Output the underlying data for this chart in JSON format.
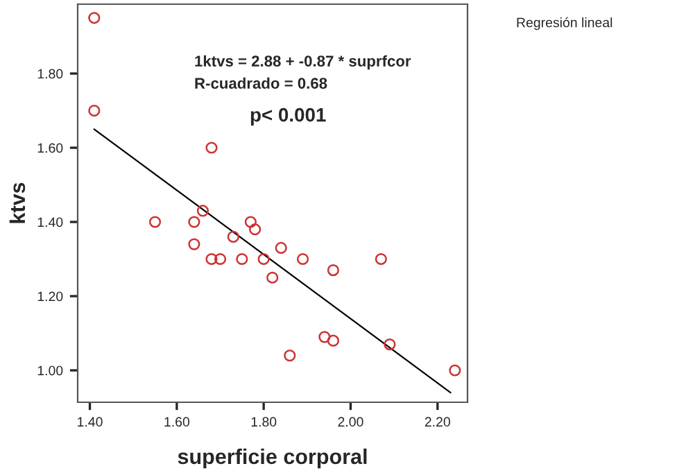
{
  "chart_data": {
    "type": "scatter",
    "xlabel": "superficie corporal",
    "ylabel": "ktvs",
    "xlim": [
      1.372,
      2.269
    ],
    "ylim": [
      0.914,
      1.987
    ],
    "xticks": [
      {
        "value": 1.4,
        "label": "1.40"
      },
      {
        "value": 1.6,
        "label": "1.60"
      },
      {
        "value": 1.8,
        "label": "1.80"
      },
      {
        "value": 2.0,
        "label": "2.00"
      },
      {
        "value": 2.2,
        "label": "2.20"
      }
    ],
    "yticks": [
      {
        "value": 1.0,
        "label": "1.00"
      },
      {
        "value": 1.2,
        "label": "1.20"
      },
      {
        "value": 1.4,
        "label": "1.40"
      },
      {
        "value": 1.6,
        "label": "1.60"
      },
      {
        "value": 1.8,
        "label": "1.80"
      }
    ],
    "grid": false,
    "annotations": [
      "1ktvs = 2.88 + -0.87 * suprfcor",
      "R-cuadrado = 0.68",
      "p< 0.001",
      "Regresión lineal"
    ],
    "series": [
      {
        "marker": "circle",
        "color": "#cc3333",
        "x": [
          1.41,
          1.41,
          1.55,
          1.64,
          1.64,
          1.66,
          1.68,
          1.68,
          1.7,
          1.73,
          1.75,
          1.77,
          1.78,
          1.8,
          1.82,
          1.84,
          1.89,
          1.96,
          2.07,
          1.86,
          1.94,
          1.96,
          2.09,
          2.24
        ],
        "values": [
          1.95,
          1.7,
          1.4,
          1.4,
          1.34,
          1.43,
          1.6,
          1.3,
          1.3,
          1.36,
          1.3,
          1.4,
          1.38,
          1.3,
          1.25,
          1.33,
          1.3,
          1.27,
          1.3,
          1.04,
          1.09,
          1.08,
          1.07,
          1.0
        ]
      },
      {
        "type": "line",
        "color": "#000000",
        "x": [
          1.41,
          2.23
        ],
        "values": [
          1.65,
          0.94
        ]
      }
    ]
  }
}
